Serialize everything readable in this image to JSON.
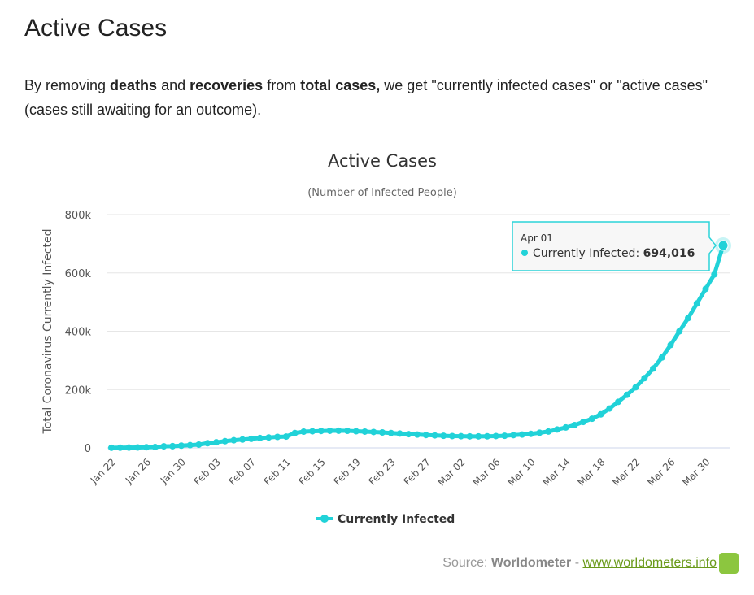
{
  "page": {
    "title": "Active Cases",
    "desc": {
      "p1": "By removing ",
      "b1": "deaths",
      "p2": " and ",
      "b2": "recoveries",
      "p3": " from ",
      "b3": "total cases,",
      "p4": " we get \"currently infected cases\" or \"active cases\" (cases still awaiting for an outcome)."
    }
  },
  "source": {
    "label": "Source: ",
    "name": "Worldometer",
    "sep": " - ",
    "link": "www.worldometers.info",
    "logo": "W"
  },
  "tooltip": {
    "date": "Apr 01",
    "series": "Currently Infected: ",
    "value": "694,016"
  },
  "chart_data": {
    "type": "line",
    "title": "Active Cases",
    "subtitle": "(Number of Infected People)",
    "ylabel": "Total Coronavirus Currently Infected",
    "xlabel": "",
    "ylim": [
      0,
      800000
    ],
    "yticks": [
      0,
      200000,
      400000,
      600000,
      800000
    ],
    "ytick_labels": [
      "0",
      "200k",
      "400k",
      "600k",
      "800k"
    ],
    "xtick_labels": [
      "Jan 22",
      "Jan 26",
      "Jan 30",
      "Feb 03",
      "Feb 07",
      "Feb 11",
      "Feb 15",
      "Feb 19",
      "Feb 23",
      "Feb 27",
      "Mar 02",
      "Mar 06",
      "Mar 10",
      "Mar 14",
      "Mar 18",
      "Mar 22",
      "Mar 26",
      "Mar 30"
    ],
    "xtick_every": 4,
    "grid": true,
    "legend": "bottom-center",
    "color": "#21d2d8",
    "series": [
      {
        "name": "Currently Infected",
        "start": "Jan 22",
        "end": "Apr 01",
        "values": [
          510,
          570,
          880,
          1300,
          2000,
          2700,
          5400,
          5900,
          7700,
          9300,
          11200,
          16000,
          19000,
          22900,
          26000,
          28600,
          31000,
          33700,
          35700,
          37600,
          38800,
          51000,
          55700,
          56900,
          57900,
          58600,
          58900,
          58400,
          57000,
          55800,
          54400,
          53000,
          51000,
          49000,
          47000,
          45500,
          44000,
          42700,
          41500,
          40500,
          40000,
          39500,
          39500,
          39700,
          40500,
          41500,
          43600,
          45500,
          48000,
          52000,
          56000,
          63000,
          70000,
          78000,
          89000,
          100000,
          115000,
          135000,
          158000,
          182000,
          208000,
          239000,
          272000,
          310000,
          353000,
          400000,
          445000,
          495000,
          545000,
          595000,
          694016
        ]
      }
    ]
  }
}
